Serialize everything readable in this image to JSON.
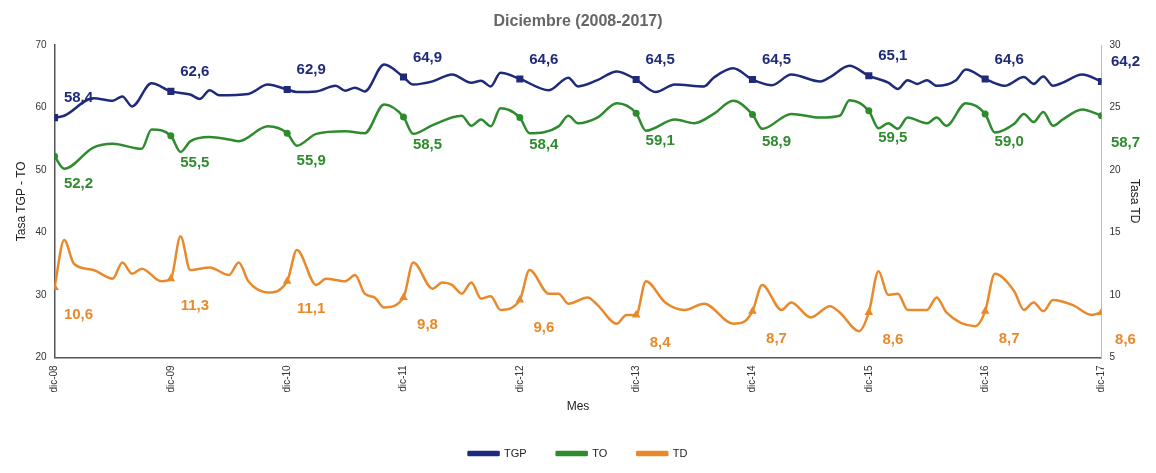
{
  "chart_data": {
    "type": "line",
    "title": "Diciembre (2008-2017)",
    "xlabel": "Mes",
    "ylabel": "Tasa TGP - TO",
    "y2label": "Tasa TD",
    "xlim": [
      "2008-12",
      "2017-12"
    ],
    "xticks": [
      {
        "value": "2008-12",
        "label": "dic-08"
      },
      {
        "value": "2009-12",
        "label": "dic-09"
      },
      {
        "value": "2010-12",
        "label": "dic-10"
      },
      {
        "value": "2011-12",
        "label": "dic-11"
      },
      {
        "value": "2012-12",
        "label": "dic-12"
      },
      {
        "value": "2013-12",
        "label": "dic-13"
      },
      {
        "value": "2014-12",
        "label": "dic-14"
      },
      {
        "value": "2015-12",
        "label": "dic-15"
      },
      {
        "value": "2016-12",
        "label": "dic-16"
      },
      {
        "value": "2017-12",
        "label": "dic-17"
      }
    ],
    "ylim": [
      20,
      70
    ],
    "yticks": [
      20,
      30,
      40,
      50,
      60,
      70
    ],
    "y2lim": [
      5,
      30
    ],
    "y2ticks": [
      5,
      10,
      15,
      20,
      25,
      30
    ],
    "grid": false,
    "legend": "bottom",
    "line_style": "solid",
    "series": [
      {
        "name": "TGP",
        "color": "#1f2a7a",
        "x": [
          "2008-12",
          "2009-01",
          "2009-04",
          "2009-06",
          "2009-07",
          "2009-08",
          "2009-10",
          "2009-12",
          "2010-02",
          "2010-03",
          "2010-04",
          "2010-05",
          "2010-08",
          "2010-10",
          "2010-12",
          "2011-01",
          "2011-03",
          "2011-05",
          "2011-06",
          "2011-07",
          "2011-08",
          "2011-10",
          "2011-12",
          "2012-01",
          "2012-03",
          "2012-05",
          "2012-07",
          "2012-08",
          "2012-09",
          "2012-10",
          "2012-12",
          "2013-03",
          "2013-05",
          "2013-06",
          "2013-08",
          "2013-10",
          "2013-12",
          "2014-02",
          "2014-04",
          "2014-07",
          "2014-08",
          "2014-10",
          "2014-12",
          "2015-02",
          "2015-04",
          "2015-07",
          "2015-08",
          "2015-10",
          "2015-12",
          "2016-02",
          "2016-03",
          "2016-04",
          "2016-05",
          "2016-06",
          "2016-07",
          "2016-09",
          "2016-10",
          "2016-12",
          "2017-02",
          "2017-04",
          "2017-05",
          "2017-06",
          "2017-07",
          "2017-08",
          "2017-10",
          "2017-12"
        ],
        "values": [
          58.4,
          58.7,
          61.5,
          61.1,
          61.8,
          60.2,
          63.9,
          62.6,
          62.1,
          61.4,
          62.8,
          62.0,
          62.2,
          63.7,
          62.9,
          62.5,
          62.6,
          63.5,
          62.7,
          63.2,
          62.6,
          66.9,
          64.9,
          63.7,
          64.2,
          65.3,
          64.0,
          64.3,
          63.4,
          65.6,
          64.6,
          62.8,
          64.8,
          63.4,
          64.4,
          65.8,
          64.5,
          62.5,
          63.7,
          63.4,
          64.8,
          66.3,
          64.5,
          63.6,
          65.3,
          64.2,
          64.9,
          66.7,
          65.1,
          64.0,
          63.0,
          64.4,
          63.8,
          64.4,
          63.5,
          64.4,
          66.1,
          64.6,
          63.5,
          64.9,
          63.8,
          65.0,
          63.5,
          64.0,
          65.3,
          64.2
        ]
      },
      {
        "name": "TO",
        "color": "#2e8b2e",
        "x": [
          "2008-12",
          "2009-01",
          "2009-04",
          "2009-06",
          "2009-09",
          "2009-10",
          "2009-12",
          "2010-01",
          "2010-02",
          "2010-04",
          "2010-06",
          "2010-07",
          "2010-10",
          "2010-12",
          "2011-01",
          "2011-03",
          "2011-06",
          "2011-08",
          "2011-10",
          "2011-12",
          "2012-01",
          "2012-03",
          "2012-06",
          "2012-07",
          "2012-08",
          "2012-09",
          "2012-10",
          "2012-12",
          "2013-01",
          "2013-04",
          "2013-05",
          "2013-06",
          "2013-08",
          "2013-10",
          "2013-12",
          "2014-01",
          "2014-04",
          "2014-06",
          "2014-08",
          "2014-10",
          "2014-12",
          "2015-01",
          "2015-04",
          "2015-07",
          "2015-09",
          "2015-10",
          "2015-12",
          "2016-01",
          "2016-02",
          "2016-03",
          "2016-04",
          "2016-06",
          "2016-07",
          "2016-08",
          "2016-10",
          "2016-12",
          "2017-01",
          "2017-03",
          "2017-04",
          "2017-05",
          "2017-06",
          "2017-07",
          "2017-08",
          "2017-10",
          "2017-12"
        ],
        "values": [
          52.2,
          50.2,
          53.6,
          54.2,
          53.4,
          56.5,
          55.5,
          52.9,
          54.6,
          55.3,
          54.9,
          54.6,
          57.0,
          55.9,
          53.9,
          55.8,
          56.2,
          55.9,
          60.5,
          58.5,
          55.8,
          57.2,
          58.7,
          57.1,
          58.1,
          57.0,
          59.9,
          58.4,
          55.9,
          57.0,
          58.7,
          57.5,
          58.4,
          60.7,
          59.1,
          56.3,
          58.1,
          57.5,
          59.0,
          61.1,
          58.9,
          56.6,
          59.0,
          58.4,
          58.7,
          61.2,
          59.5,
          56.7,
          57.5,
          56.6,
          58.4,
          57.5,
          58.4,
          57.1,
          60.7,
          59.0,
          56.0,
          57.4,
          59.0,
          57.7,
          59.3,
          57.1,
          58.1,
          59.7,
          58.7
        ]
      },
      {
        "name": "TD",
        "color": "#e8892c",
        "axis": "y2",
        "x": [
          "2008-12",
          "2009-01",
          "2009-02",
          "2009-04",
          "2009-06",
          "2009-07",
          "2009-08",
          "2009-09",
          "2009-11",
          "2009-12",
          "2010-01",
          "2010-02",
          "2010-04",
          "2010-06",
          "2010-07",
          "2010-08",
          "2010-10",
          "2010-12",
          "2011-01",
          "2011-03",
          "2011-04",
          "2011-06",
          "2011-07",
          "2011-08",
          "2011-09",
          "2011-10",
          "2011-12",
          "2012-01",
          "2012-03",
          "2012-04",
          "2012-05",
          "2012-06",
          "2012-07",
          "2012-08",
          "2012-09",
          "2012-10",
          "2012-12",
          "2013-01",
          "2013-03",
          "2013-04",
          "2013-05",
          "2013-07",
          "2013-08",
          "2013-10",
          "2013-11",
          "2013-12",
          "2014-01",
          "2014-03",
          "2014-05",
          "2014-07",
          "2014-10",
          "2014-11",
          "2014-12",
          "2015-01",
          "2015-03",
          "2015-04",
          "2015-06",
          "2015-08",
          "2015-09",
          "2015-11",
          "2015-12",
          "2016-01",
          "2016-02",
          "2016-03",
          "2016-04",
          "2016-06",
          "2016-07",
          "2016-08",
          "2016-11",
          "2016-12",
          "2017-01",
          "2017-03",
          "2017-04",
          "2017-05",
          "2017-06",
          "2017-07",
          "2017-09",
          "2017-11",
          "2017-12"
        ],
        "values": [
          10.6,
          14.4,
          12.5,
          12.0,
          11.3,
          12.6,
          11.7,
          12.1,
          11.1,
          11.3,
          14.7,
          12.0,
          12.2,
          11.6,
          12.6,
          11.1,
          10.2,
          11.1,
          13.6,
          10.8,
          11.3,
          11.1,
          11.6,
          10.1,
          9.8,
          9.0,
          9.8,
          12.6,
          10.5,
          11.0,
          10.8,
          10.1,
          11.0,
          9.7,
          9.9,
          8.8,
          9.6,
          12.0,
          10.1,
          10.1,
          9.3,
          9.8,
          9.2,
          7.7,
          8.4,
          8.4,
          11.1,
          9.4,
          8.8,
          9.3,
          7.7,
          7.8,
          8.7,
          10.8,
          8.8,
          9.4,
          8.2,
          9.1,
          8.6,
          7.1,
          8.6,
          11.9,
          10.0,
          10.1,
          8.8,
          8.8,
          9.8,
          8.6,
          7.5,
          8.7,
          11.7,
          10.3,
          8.8,
          9.4,
          8.7,
          9.6,
          9.2,
          8.4,
          8.6
        ]
      },
      {
        "type": "scatter",
        "color": "#1f2a7a",
        "marker": "square",
        "x": [
          "2008-12",
          "2009-12",
          "2010-12",
          "2011-12",
          "2012-12",
          "2013-12",
          "2014-12",
          "2015-12",
          "2016-12",
          "2017-12"
        ],
        "values": [
          58.4,
          62.6,
          62.9,
          64.9,
          64.6,
          64.5,
          64.5,
          65.1,
          64.6,
          64.2
        ],
        "value_labels": [
          "58,4",
          "62,6",
          "62,9",
          "64,9",
          "64,6",
          "64,5",
          "64,5",
          "65,1",
          "64,6",
          "64,2"
        ]
      },
      {
        "type": "scatter",
        "color": "#2e8b2e",
        "marker": "circle",
        "x": [
          "2008-12",
          "2009-12",
          "2010-12",
          "2011-12",
          "2012-12",
          "2013-12",
          "2014-12",
          "2015-12",
          "2016-12",
          "2017-12"
        ],
        "values": [
          52.2,
          55.5,
          55.9,
          58.5,
          58.4,
          59.1,
          58.9,
          59.5,
          59.0,
          58.7
        ],
        "value_labels": [
          "52,2",
          "55,5",
          "55,9",
          "58,5",
          "58,4",
          "59,1",
          "58,9",
          "59,5",
          "59,0",
          "58,7"
        ]
      },
      {
        "type": "scatter",
        "color": "#e8892c",
        "marker": "triangle",
        "axis": "y2",
        "x": [
          "2008-12",
          "2009-12",
          "2010-12",
          "2011-12",
          "2012-12",
          "2013-12",
          "2014-12",
          "2015-12",
          "2016-12",
          "2017-12"
        ],
        "values": [
          10.6,
          11.3,
          11.1,
          9.8,
          9.6,
          8.4,
          8.7,
          8.6,
          8.7,
          8.6
        ],
        "value_labels": [
          "10,6",
          "11,3",
          "11,1",
          "9,8",
          "9,6",
          "8,4",
          "8,7",
          "8,6",
          "8,7",
          "8,6"
        ]
      }
    ]
  }
}
